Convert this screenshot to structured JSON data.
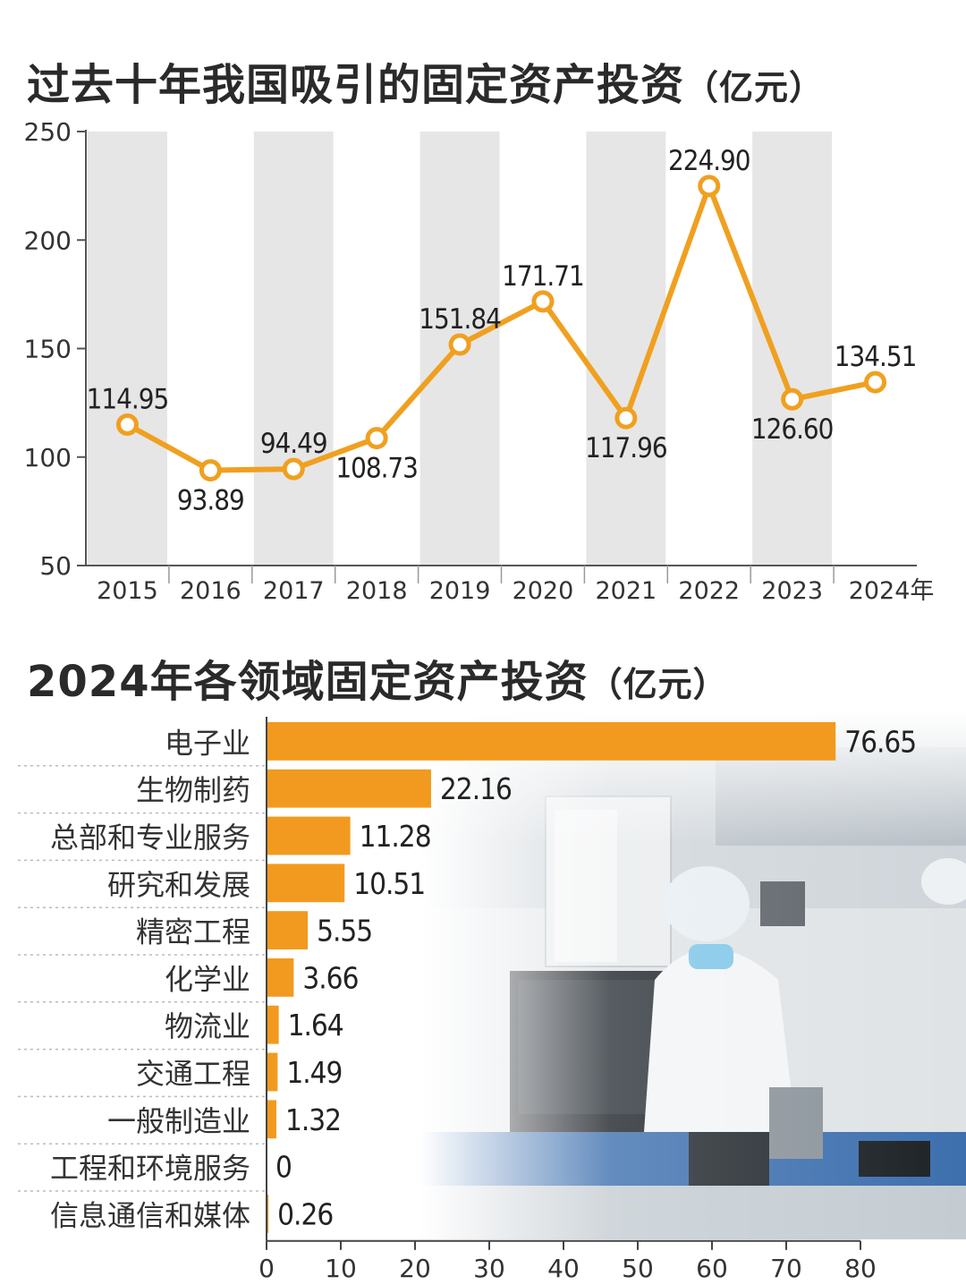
{
  "charts": {
    "line": {
      "title": "过去十年我国吸引的固定资产投资",
      "unit": "（亿元）"
    },
    "bar": {
      "title": "2024年各领域固定资产投资",
      "unit": "（亿元）"
    }
  },
  "chart_data": [
    {
      "type": "line",
      "title": "过去十年我国吸引的固定资产投资（亿元）",
      "x": [
        "2015",
        "2016",
        "2017",
        "2018",
        "2019",
        "2020",
        "2021",
        "2022",
        "2023",
        "2024年"
      ],
      "values": [
        114.95,
        93.89,
        94.49,
        108.73,
        151.84,
        171.71,
        117.96,
        224.9,
        126.6,
        134.51
      ],
      "labels": [
        "114.95",
        "93.89",
        "94.49",
        "108.73",
        "151.84",
        "171.71",
        "117.96",
        "224.90",
        "126.60",
        "134.51"
      ],
      "ylim": [
        50,
        250
      ],
      "yticks": [
        "50",
        "100",
        "150",
        "200",
        "250"
      ],
      "color": "#F0A020",
      "band_color": "#E6E6E6"
    },
    {
      "type": "bar",
      "orientation": "horizontal",
      "title": "2024年各领域固定资产投资（亿元）",
      "categories": [
        "电子业",
        "生物制药",
        "总部和专业服务",
        "研究和发展",
        "精密工程",
        "化学业",
        "物流业",
        "交通工程",
        "一般制造业",
        "工程和环境服务",
        "信息通信和媒体"
      ],
      "values": [
        76.65,
        22.16,
        11.28,
        10.51,
        5.55,
        3.66,
        1.64,
        1.49,
        1.32,
        0,
        0.26
      ],
      "labels": [
        "76.65",
        "22.16",
        "11.28",
        "10.51",
        "5.55",
        "3.66",
        "1.64",
        "1.49",
        "1.32",
        "0",
        "0.26"
      ],
      "xlim": [
        0,
        80
      ],
      "xticks": [
        "0",
        "10",
        "20",
        "30",
        "40",
        "50",
        "60",
        "70",
        "80"
      ],
      "color": "#F29A1F"
    }
  ]
}
